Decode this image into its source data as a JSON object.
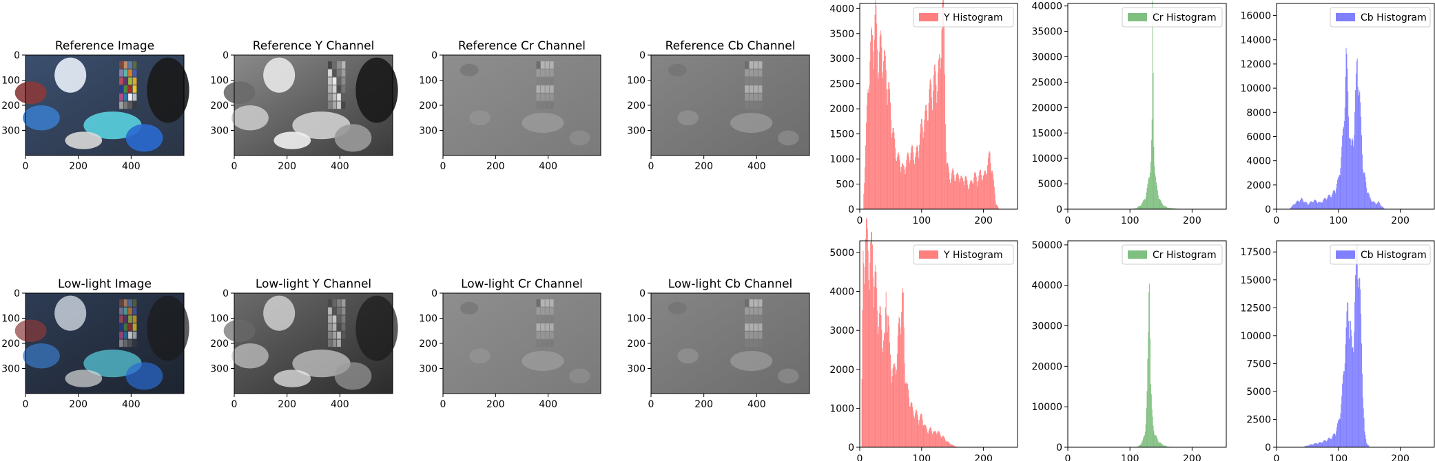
{
  "chart_data": [
    {
      "type": "image",
      "title": "Reference Image",
      "image_size": [
        600,
        400
      ],
      "xticks": [
        0,
        200,
        400
      ],
      "yticks": [
        0,
        100,
        200,
        300
      ],
      "tone": "color"
    },
    {
      "type": "image",
      "title": "Reference Y Channel",
      "image_size": [
        600,
        400
      ],
      "xticks": [
        0,
        200,
        400
      ],
      "yticks": [
        0,
        100,
        200,
        300
      ],
      "tone": "y"
    },
    {
      "type": "image",
      "title": "Reference Cr Channel",
      "image_size": [
        600,
        400
      ],
      "xticks": [
        0,
        200,
        400
      ],
      "yticks": [
        0,
        100,
        200,
        300
      ],
      "tone": "cr"
    },
    {
      "type": "image",
      "title": "Reference Cb Channel",
      "image_size": [
        600,
        400
      ],
      "xticks": [
        0,
        200,
        400
      ],
      "yticks": [
        0,
        100,
        200,
        300
      ],
      "tone": "cb"
    },
    {
      "type": "histogram",
      "series": [
        {
          "name": "Y Histogram",
          "color": "#ff7f7f",
          "x": [
            5,
            10,
            15,
            20,
            25,
            30,
            35,
            40,
            45,
            50,
            55,
            60,
            65,
            70,
            75,
            80,
            85,
            90,
            95,
            100,
            105,
            110,
            115,
            120,
            125,
            130,
            132,
            135,
            138,
            140,
            145,
            150,
            155,
            160,
            165,
            170,
            175,
            180,
            185,
            190,
            195,
            200,
            205,
            210,
            215,
            220,
            225
          ],
          "y": [
            0,
            1500,
            2800,
            3200,
            3600,
            2900,
            3100,
            2700,
            2400,
            1800,
            1300,
            1000,
            900,
            750,
            900,
            1050,
            1100,
            1000,
            1250,
            1600,
            1700,
            2000,
            2300,
            2450,
            2500,
            2700,
            4000,
            3900,
            1800,
            900,
            600,
            700,
            600,
            650,
            550,
            600,
            450,
            500,
            650,
            550,
            700,
            600,
            800,
            1050,
            600,
            100,
            0
          ]
        }
      ],
      "xticks": [
        0,
        100,
        200
      ],
      "yticks": [
        0,
        500,
        1000,
        1500,
        2000,
        2500,
        3000,
        3500,
        4000
      ],
      "xlim": [
        0,
        255
      ],
      "ylim": [
        0,
        4100
      ],
      "legend_position": "top-right"
    },
    {
      "type": "histogram",
      "series": [
        {
          "name": "Cr Histogram",
          "color": "#7fbf7f",
          "x": [
            100,
            110,
            115,
            120,
            125,
            128,
            130,
            133,
            135,
            136,
            137,
            138,
            140,
            142,
            145,
            148,
            150,
            155,
            160,
            170,
            180,
            190
          ],
          "y": [
            0,
            200,
            600,
            1200,
            2500,
            4200,
            6000,
            9000,
            15000,
            35500,
            25000,
            13000,
            7000,
            4500,
            2800,
            1800,
            1200,
            600,
            300,
            150,
            60,
            0
          ]
        }
      ],
      "xticks": [
        0,
        100,
        200
      ],
      "yticks": [
        0,
        5000,
        10000,
        15000,
        20000,
        25000,
        30000,
        35000,
        40000
      ],
      "xlim": [
        0,
        255
      ],
      "ylim": [
        0,
        40500
      ],
      "legend_position": "top-right"
    },
    {
      "type": "histogram",
      "series": [
        {
          "name": "Cb Histogram",
          "color": "#7f7fff",
          "x": [
            20,
            30,
            40,
            50,
            60,
            70,
            80,
            90,
            95,
            100,
            105,
            108,
            110,
            112,
            114,
            116,
            118,
            120,
            125,
            128,
            130,
            132,
            135,
            140,
            145,
            150,
            155,
            160,
            165,
            170,
            175
          ],
          "y": [
            0,
            500,
            800,
            400,
            700,
            500,
            900,
            1200,
            1600,
            2400,
            4500,
            6500,
            9500,
            11800,
            10000,
            8000,
            6000,
            4500,
            6500,
            9500,
            12000,
            10500,
            7500,
            3000,
            1800,
            900,
            600,
            450,
            550,
            200,
            0
          ]
        }
      ],
      "xticks": [
        0,
        100,
        200
      ],
      "yticks": [
        0,
        2000,
        4000,
        6000,
        8000,
        10000,
        12000,
        14000,
        16000
      ],
      "xlim": [
        0,
        255
      ],
      "ylim": [
        0,
        17000
      ],
      "legend_position": "top-right"
    },
    {
      "type": "image",
      "title": "Low-light Image",
      "image_size": [
        600,
        400
      ],
      "xticks": [
        0,
        200,
        400
      ],
      "yticks": [
        0,
        100,
        200,
        300
      ],
      "tone": "color-dark"
    },
    {
      "type": "image",
      "title": "Low-light Y Channel",
      "image_size": [
        600,
        400
      ],
      "xticks": [
        0,
        200,
        400
      ],
      "yticks": [
        0,
        100,
        200,
        300
      ],
      "tone": "y-dark"
    },
    {
      "type": "image",
      "title": "Low-light Cr Channel",
      "image_size": [
        600,
        400
      ],
      "xticks": [
        0,
        200,
        400
      ],
      "yticks": [
        0,
        100,
        200,
        300
      ],
      "tone": "cr"
    },
    {
      "type": "image",
      "title": "Low-light Cb Channel",
      "image_size": [
        600,
        400
      ],
      "xticks": [
        0,
        200,
        400
      ],
      "yticks": [
        0,
        100,
        200,
        300
      ],
      "tone": "cb"
    },
    {
      "type": "histogram",
      "series": [
        {
          "name": "Y Histogram",
          "color": "#ff7f7f",
          "x": [
            2,
            5,
            8,
            10,
            12,
            15,
            18,
            20,
            22,
            25,
            28,
            30,
            35,
            40,
            42,
            45,
            48,
            50,
            55,
            60,
            65,
            68,
            70,
            72,
            75,
            80,
            85,
            90,
            95,
            100,
            105,
            110,
            115,
            120,
            125,
            130,
            135,
            140,
            145,
            150,
            155,
            160
          ],
          "y": [
            0,
            4500,
            5000,
            5100,
            4900,
            4600,
            4700,
            4800,
            4300,
            4000,
            3500,
            3300,
            2900,
            2500,
            3700,
            3400,
            2300,
            2000,
            1800,
            2300,
            3300,
            3550,
            3400,
            2200,
            1500,
            1200,
            900,
            850,
            700,
            750,
            500,
            400,
            450,
            350,
            400,
            300,
            250,
            150,
            100,
            50,
            20,
            0
          ]
        }
      ],
      "xticks": [
        0,
        100,
        200
      ],
      "yticks": [
        0,
        1000,
        2000,
        3000,
        4000,
        5000
      ],
      "xlim": [
        0,
        255
      ],
      "ylim": [
        0,
        5300
      ],
      "legend_position": "top-right"
    },
    {
      "type": "histogram",
      "series": [
        {
          "name": "Cr Histogram",
          "color": "#7fbf7f",
          "x": [
            110,
            115,
            120,
            123,
            125,
            127,
            129,
            130,
            131,
            132,
            133,
            135,
            137,
            140,
            145,
            150,
            155,
            160,
            170
          ],
          "y": [
            0,
            400,
            1500,
            3000,
            6000,
            12000,
            25000,
            37000,
            45000,
            30000,
            15000,
            8000,
            5000,
            3000,
            1500,
            800,
            400,
            150,
            0
          ]
        }
      ],
      "xticks": [
        0,
        100,
        200
      ],
      "yticks": [
        0,
        10000,
        20000,
        30000,
        40000,
        50000
      ],
      "xlim": [
        0,
        255
      ],
      "ylim": [
        0,
        51000
      ],
      "legend_position": "top-right"
    },
    {
      "type": "histogram",
      "series": [
        {
          "name": "Cb Histogram",
          "color": "#7f7fff",
          "x": [
            40,
            50,
            60,
            70,
            80,
            90,
            95,
            100,
            105,
            108,
            110,
            112,
            115,
            118,
            120,
            122,
            125,
            128,
            130,
            132,
            135,
            138,
            140,
            142,
            145,
            150
          ],
          "y": [
            0,
            150,
            300,
            400,
            600,
            900,
            1300,
            2200,
            4000,
            6500,
            8500,
            9500,
            12000,
            11500,
            9000,
            8000,
            11000,
            14500,
            17500,
            16000,
            12000,
            7000,
            3500,
            1200,
            400,
            0
          ]
        }
      ],
      "xticks": [
        0,
        100,
        200
      ],
      "yticks": [
        0,
        2500,
        5000,
        7500,
        10000,
        12500,
        15000,
        17500
      ],
      "xlim": [
        0,
        255
      ],
      "ylim": [
        0,
        18500
      ],
      "legend_position": "top-right"
    }
  ]
}
